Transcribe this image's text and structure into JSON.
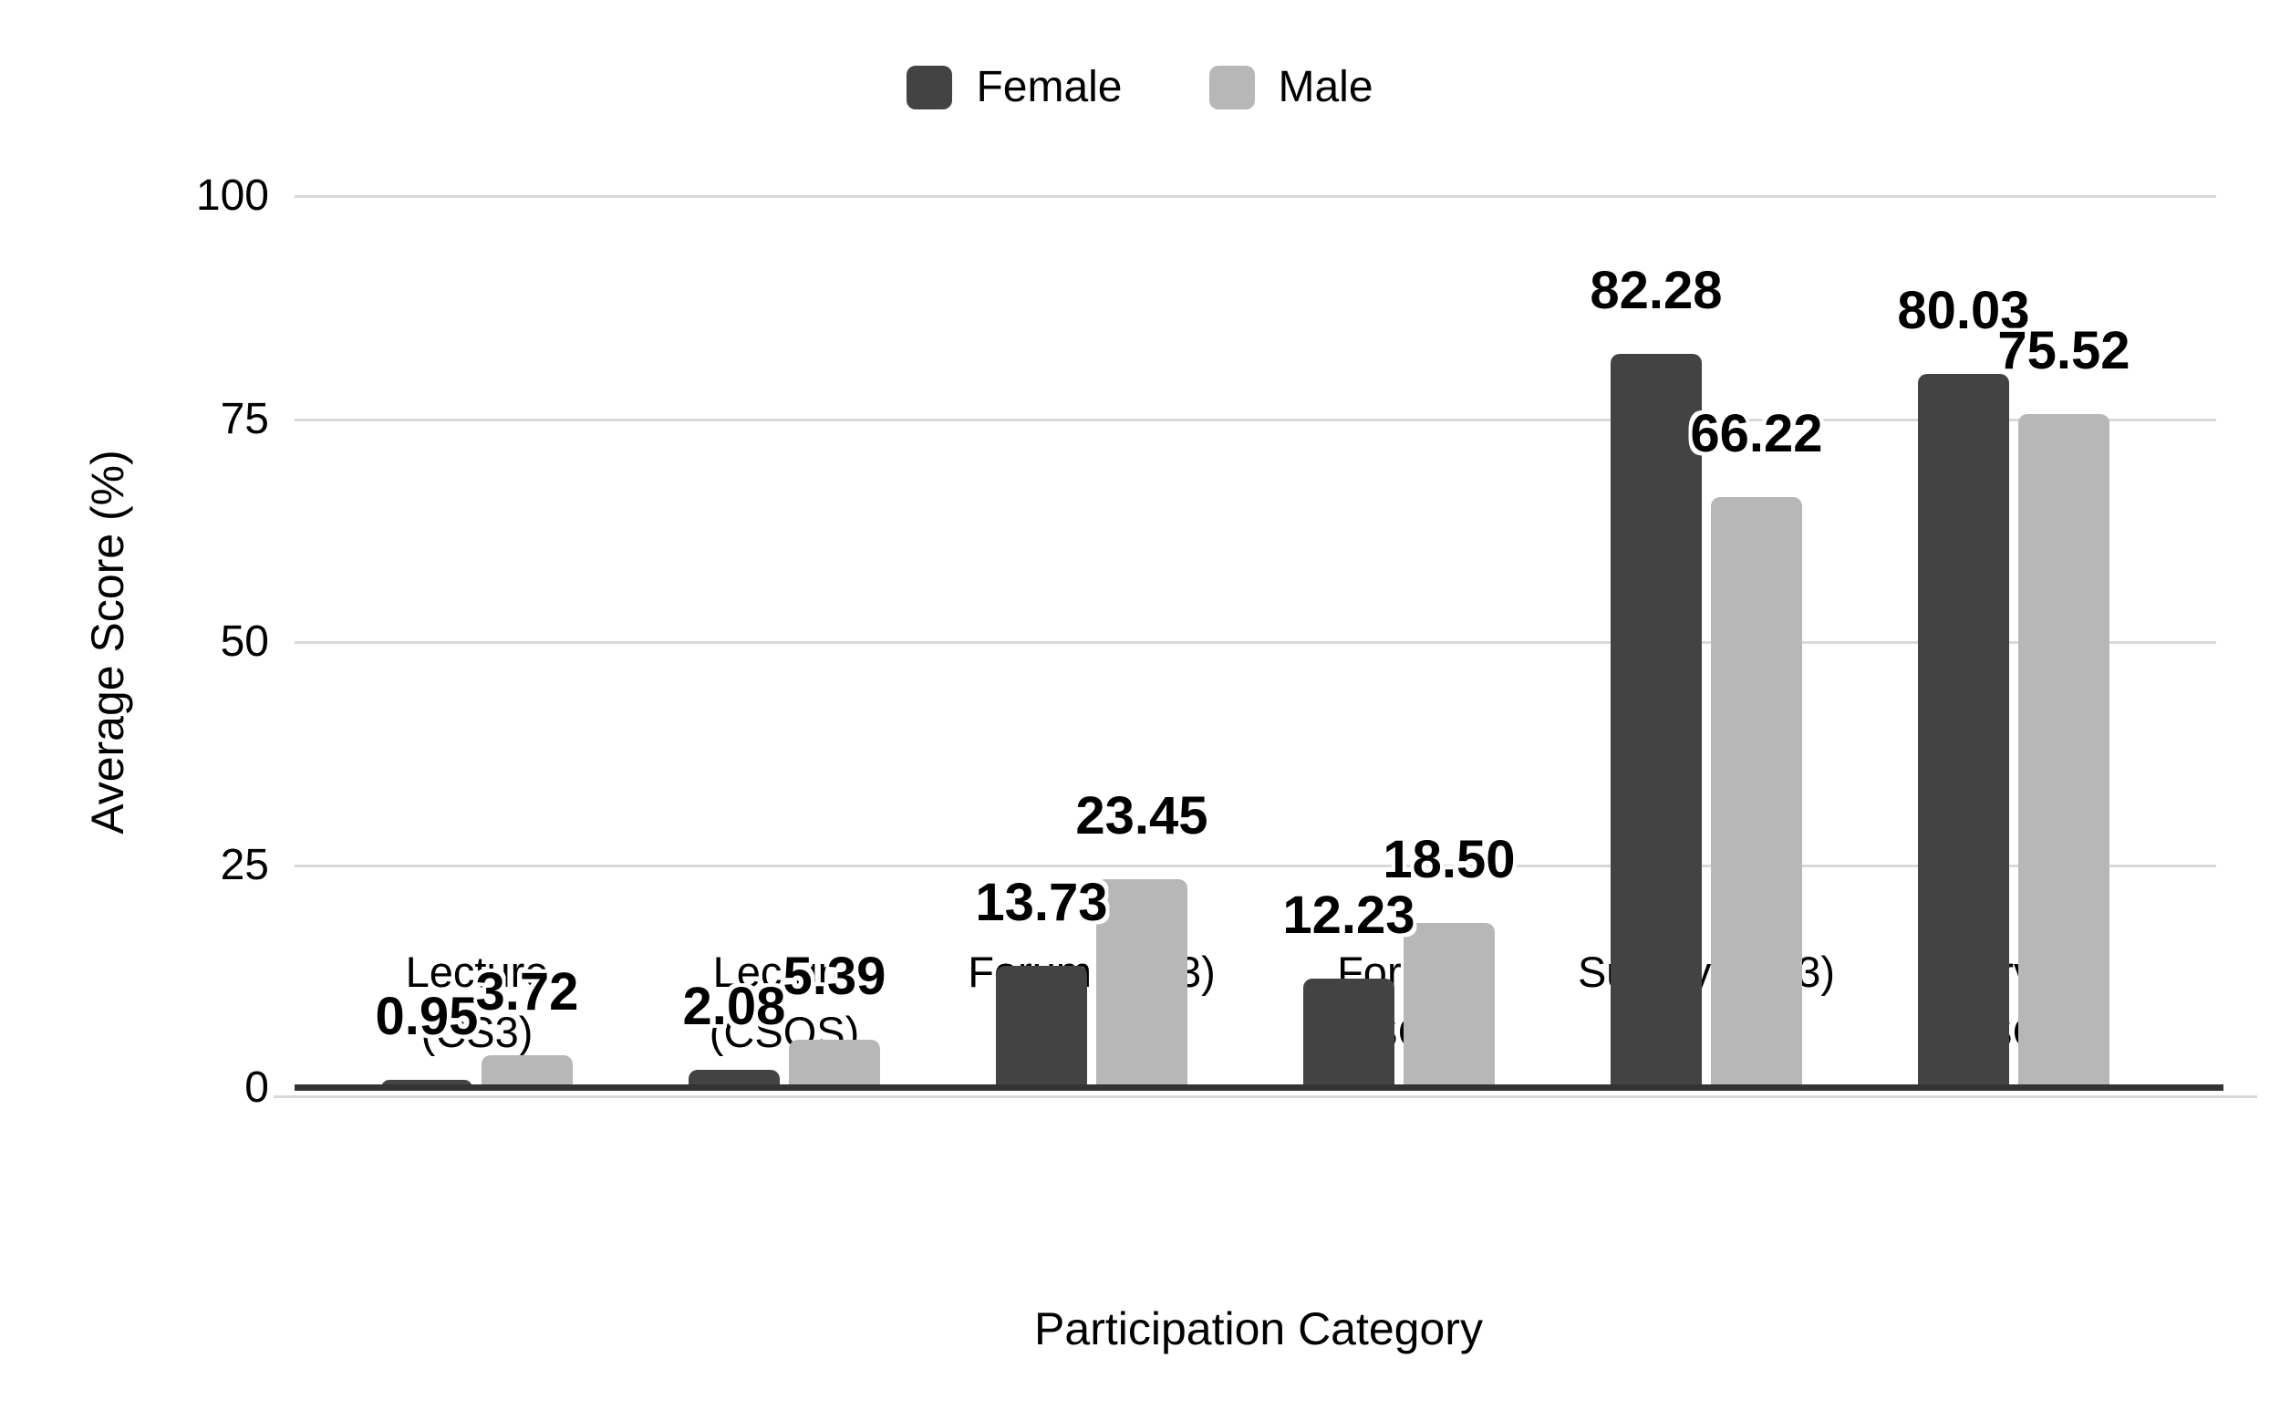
{
  "chart_data": {
    "type": "bar",
    "title": "",
    "xlabel": "Participation Category",
    "ylabel": "Average Score (%)",
    "categories": [
      "Lecture (CS3)",
      "Lecture (CSOS)",
      "Forum (CS3)",
      "Forum (CSOS)",
      "Survey (CS3)",
      "Survey (CSOS)"
    ],
    "category_display_lines": [
      [
        "Lecture",
        "(CS3)"
      ],
      [
        "Lecture",
        "(CSOS)"
      ],
      [
        "Forum (CS3)"
      ],
      [
        "Forum",
        "(CSOS)"
      ],
      [
        "Survey (CS3)"
      ],
      [
        "Survey",
        "(CSOS)"
      ]
    ],
    "series": [
      {
        "name": "Female",
        "color": "#434343",
        "values": [
          0.95,
          2.08,
          13.73,
          12.23,
          82.28,
          80.03
        ],
        "value_labels": [
          "0.95",
          "2.08",
          "13.73",
          "12.23",
          "82.28",
          "80.03"
        ]
      },
      {
        "name": "Male",
        "color": "#b7b7b7",
        "values": [
          3.72,
          5.39,
          23.45,
          18.5,
          66.22,
          75.52
        ],
        "value_labels": [
          "3.72",
          "5.39",
          "23.45",
          "18.50",
          "66.22",
          "75.52"
        ]
      }
    ],
    "ylim": [
      0,
      100
    ],
    "yticks": [
      0,
      25,
      50,
      75,
      100
    ],
    "ytick_labels": [
      "0",
      "25",
      "50",
      "75",
      "100"
    ],
    "grid": "horizontal",
    "legend_position": "top-center",
    "colors": {
      "gridline": "#d9d9d9",
      "axis_line": "#333333",
      "background": "#ffffff",
      "text": "#000000"
    }
  }
}
